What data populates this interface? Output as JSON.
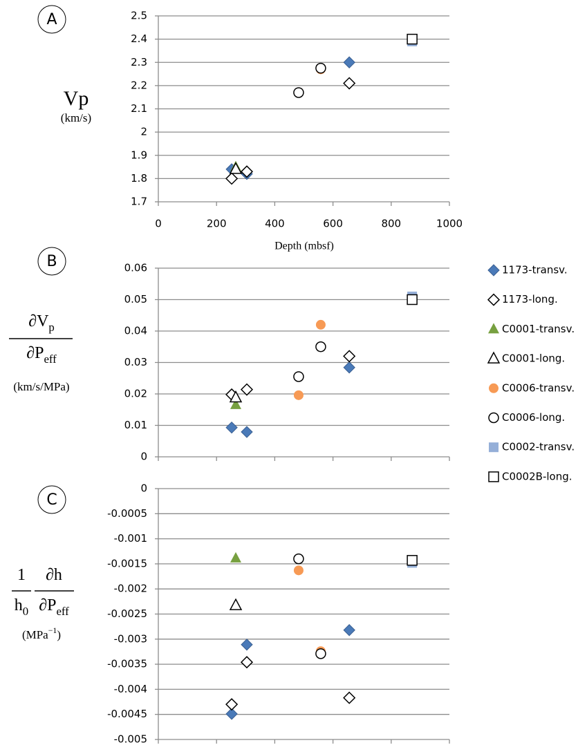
{
  "chart_data": [
    {
      "type": "scatter",
      "panel": "A",
      "y_label": {
        "text": "Vp",
        "units": "(km/s)"
      },
      "xlabel": "Depth (mbsf)",
      "xlim": [
        0,
        1000
      ],
      "xticks": [
        0,
        200,
        400,
        600,
        800,
        1000
      ],
      "ylim": [
        1.7,
        2.5
      ],
      "yticks": [
        1.7,
        1.8,
        1.9,
        2,
        2.1,
        2.2,
        2.3,
        2.4,
        2.5
      ],
      "grid": true,
      "series": [
        {
          "color": "#4a7ab8",
          "marker": "diamond",
          "filled": true,
          "x": [
            252,
            304,
            656
          ],
          "values": [
            1.84,
            1.82,
            2.3
          ]
        },
        {
          "color": "#000000",
          "marker": "diamond",
          "filled": false,
          "x": [
            252,
            304,
            656
          ],
          "values": [
            1.8,
            1.83,
            2.21
          ]
        },
        {
          "color": "#77a040",
          "marker": "triangle",
          "filled": true,
          "x": [
            266
          ],
          "values": [
            1.85
          ]
        },
        {
          "color": "#000000",
          "marker": "triangle",
          "filled": false,
          "x": [
            266
          ],
          "values": [
            1.84
          ]
        },
        {
          "color": "#f79a55",
          "marker": "circle",
          "filled": true,
          "x": [
            482,
            558
          ],
          "values": [
            2.17,
            2.27
          ]
        },
        {
          "color": "#000000",
          "marker": "circle",
          "filled": false,
          "x": [
            482,
            558
          ],
          "values": [
            2.17,
            2.275
          ]
        },
        {
          "color": "#95afd8",
          "marker": "square",
          "filled": true,
          "x": [
            872
          ],
          "values": [
            2.39
          ]
        },
        {
          "color": "#000000",
          "marker": "square",
          "filled": false,
          "x": [
            872
          ],
          "values": [
            2.4
          ]
        }
      ]
    },
    {
      "type": "scatter",
      "panel": "B",
      "y_label": {
        "numerator": [
          "∂V",
          "p"
        ],
        "denominator": [
          "∂P",
          "eff"
        ],
        "units": "(km/s/MPa)"
      },
      "xlim": [
        0,
        1000
      ],
      "ylim": [
        0,
        0.06
      ],
      "yticks": [
        0,
        0.01,
        0.02,
        0.03,
        0.04,
        0.05,
        0.06
      ],
      "grid": true,
      "legend": "right",
      "series": [
        {
          "name": "1173-transv.",
          "color": "#4a7ab8",
          "marker": "diamond",
          "filled": true,
          "x": [
            252,
            304,
            656
          ],
          "values": [
            0.0093,
            0.0079,
            0.0284
          ]
        },
        {
          "name": "1173-long.",
          "color": "#000000",
          "marker": "diamond",
          "filled": false,
          "x": [
            252,
            304,
            656
          ],
          "values": [
            0.0198,
            0.0214,
            0.032
          ]
        },
        {
          "name": "C0001-transv.",
          "color": "#77a040",
          "marker": "triangle",
          "filled": true,
          "x": [
            266
          ],
          "values": [
            0.0165
          ]
        },
        {
          "name": "C0001-long.",
          "color": "#000000",
          "marker": "triangle",
          "filled": false,
          "x": [
            266
          ],
          "values": [
            0.0188
          ]
        },
        {
          "name": "C0006-transv.",
          "color": "#f79a55",
          "marker": "circle",
          "filled": true,
          "x": [
            482,
            558
          ],
          "values": [
            0.0196,
            0.042
          ]
        },
        {
          "name": "C0006-long.",
          "color": "#000000",
          "marker": "circle",
          "filled": false,
          "x": [
            482,
            558
          ],
          "values": [
            0.0255,
            0.035
          ]
        },
        {
          "name": "C0002-transv.",
          "color": "#95afd8",
          "marker": "square",
          "filled": true,
          "x": [
            872
          ],
          "values": [
            0.051
          ]
        },
        {
          "name": "C0002B-long.",
          "color": "#000000",
          "marker": "square",
          "filled": false,
          "x": [
            872
          ],
          "values": [
            0.05
          ]
        }
      ]
    },
    {
      "type": "scatter",
      "panel": "C",
      "y_label": {
        "factor_numerator": "1",
        "factor_denominator": [
          "h",
          "0"
        ],
        "numerator": "∂h",
        "denominator": [
          "∂P",
          "eff"
        ],
        "units": [
          "(MPa",
          "−1",
          ")"
        ]
      },
      "xlim": [
        0,
        1000
      ],
      "ylim": [
        -0.005,
        0
      ],
      "yticks": [
        -0.005,
        -0.0045,
        -0.004,
        -0.0035,
        -0.003,
        -0.0025,
        -0.002,
        -0.0015,
        -0.001,
        -0.0005,
        0
      ],
      "grid": true,
      "series": [
        {
          "color": "#4a7ab8",
          "marker": "diamond",
          "filled": true,
          "x": [
            252,
            304,
            656
          ],
          "values": [
            -0.00449,
            -0.00311,
            -0.00282
          ]
        },
        {
          "color": "#000000",
          "marker": "diamond",
          "filled": false,
          "x": [
            252,
            304,
            656
          ],
          "values": [
            -0.0043,
            -0.00346,
            -0.00417
          ]
        },
        {
          "color": "#77a040",
          "marker": "triangle",
          "filled": true,
          "x": [
            266
          ],
          "values": [
            -0.00139
          ]
        },
        {
          "color": "#000000",
          "marker": "triangle",
          "filled": false,
          "x": [
            266
          ],
          "values": [
            -0.00233
          ]
        },
        {
          "color": "#f79a55",
          "marker": "circle",
          "filled": true,
          "x": [
            482,
            558
          ],
          "values": [
            -0.00163,
            -0.00324
          ]
        },
        {
          "color": "#000000",
          "marker": "circle",
          "filled": false,
          "x": [
            482,
            558
          ],
          "values": [
            -0.0014,
            -0.00329
          ]
        },
        {
          "color": "#95afd8",
          "marker": "square",
          "filled": true,
          "x": [
            872
          ],
          "values": [
            -0.00148
          ]
        },
        {
          "color": "#000000",
          "marker": "square",
          "filled": false,
          "x": [
            872
          ],
          "values": [
            -0.00143
          ]
        }
      ]
    }
  ]
}
